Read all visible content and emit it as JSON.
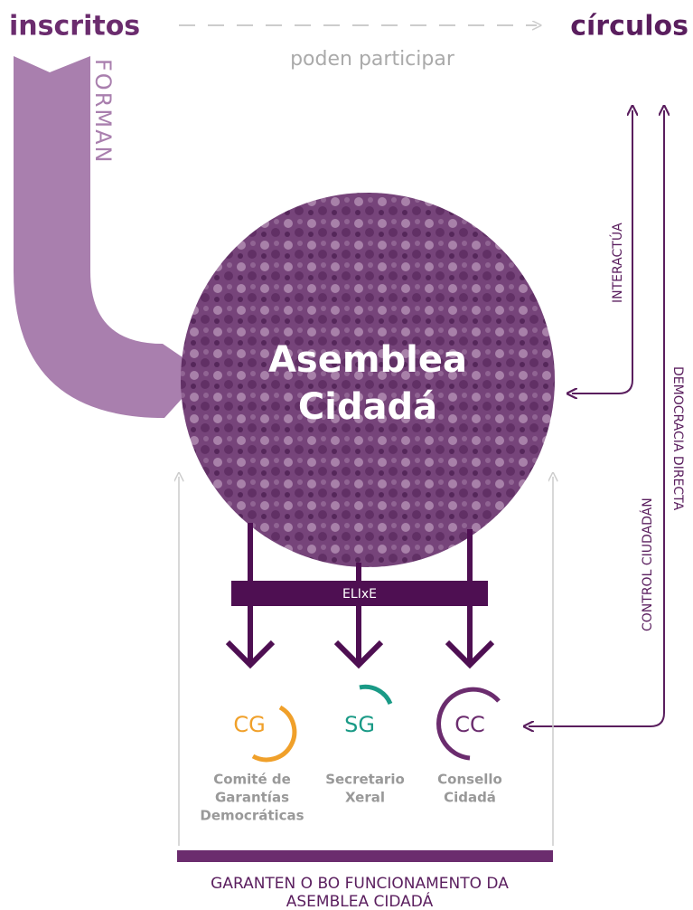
{
  "header": {
    "left": "inscritos",
    "right": "círculos",
    "link": "poden participar"
  },
  "forman": "FORMAN",
  "center": {
    "line1": "Asemblea",
    "line2": "Cidadá"
  },
  "right_links": {
    "interactua": "INTERACTÚA",
    "democracia": "DEMOCRACIA DIRECTA",
    "control": "CONTROL CIUDADÁN"
  },
  "elixe": "ELIxE",
  "nodes": [
    {
      "abbr": "CG",
      "label": [
        "Comité de",
        "Garantías",
        "Democráticas"
      ]
    },
    {
      "abbr": "SG",
      "label": [
        "Secretario",
        "Xeral"
      ]
    },
    {
      "abbr": "CC",
      "label": [
        "Consello",
        "Cidadá"
      ]
    }
  ],
  "footer": [
    "GARANTEN O BO FUNCIONAMENTO DA",
    "ASEMBLEA CIDADÁ"
  ]
}
